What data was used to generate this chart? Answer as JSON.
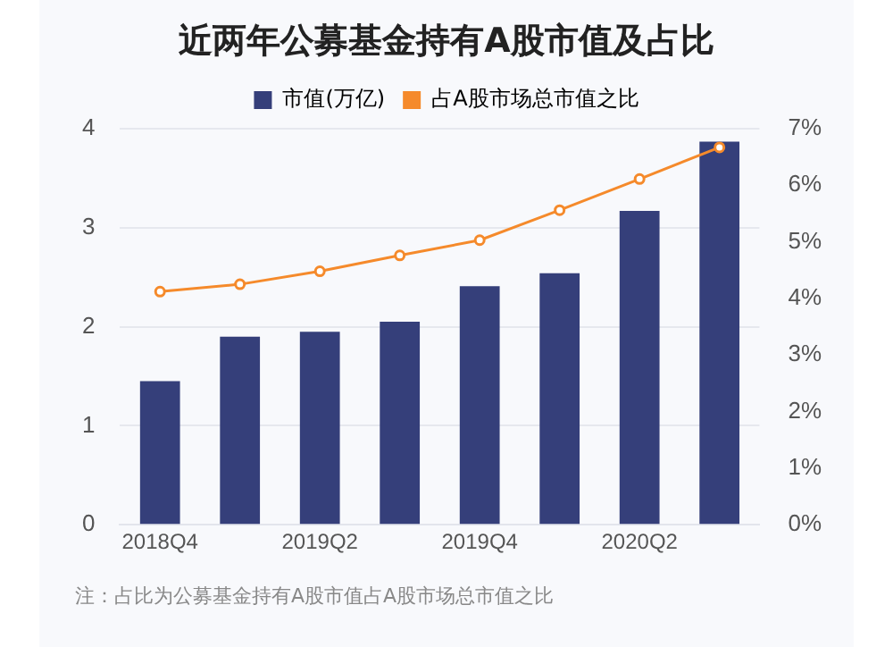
{
  "chart_data": {
    "type": "bar",
    "title": "近两年公募基金持有A股市值及占比",
    "categories": [
      "2018Q4",
      null,
      "2019Q2",
      null,
      "2019Q4",
      null,
      "2020Q2",
      null
    ],
    "series": [
      {
        "name": "市值(万亿)",
        "color": "#353f7a",
        "values": [
          1.45,
          1.9,
          1.95,
          2.05,
          2.41,
          2.54,
          3.17,
          3.87
        ]
      },
      {
        "name": "占A股市场总市值之比",
        "type": "line",
        "axis": "y2",
        "color": "#f58a2b",
        "marker": "circle",
        "values": [
          4.12,
          4.25,
          4.48,
          4.76,
          5.03,
          5.56,
          6.11,
          6.67
        ]
      }
    ],
    "ylim": [
      0,
      4
    ],
    "yticks": [
      0,
      1,
      2,
      3,
      4
    ],
    "y2lim": [
      0,
      7
    ],
    "y2ticks": [
      {
        "value": 0,
        "label": "0%"
      },
      {
        "value": 1,
        "label": "1%"
      },
      {
        "value": 2,
        "label": "2%"
      },
      {
        "value": 3,
        "label": "3%"
      },
      {
        "value": 4,
        "label": "4%"
      },
      {
        "value": 5,
        "label": "5%"
      },
      {
        "value": 6,
        "label": "6%"
      },
      {
        "value": 7,
        "label": "7%"
      }
    ],
    "grid": "y",
    "legend": "top",
    "annotations": [
      "注：占比为公募基金持有A股市值占A股市场总市值之比"
    ]
  }
}
